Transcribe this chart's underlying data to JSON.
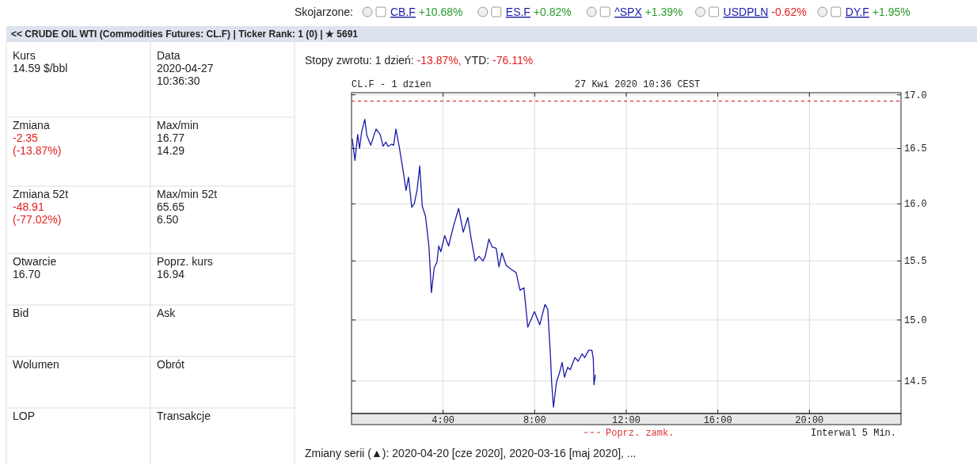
{
  "chart_data": [
    {
      "type": "other",
      "title": "Skojarzone:",
      "annotations": [
        "CB.F +10.68%",
        "ES.F +0.82%",
        "^SPX +1.39%",
        "USDPLN -0.62%",
        "DY.F +1.95%"
      ]
    },
    {
      "type": "other",
      "title": "<< CRUDE OIL WTI (Commodities Futures: CL.F) | Ticker Rank: 1 (0) | ★ 5691",
      "annotations": [
        "Kurs\n14.59 $/bbl",
        "Data\n2020-04-27\n10:36:30",
        "Zmiana\n-2.35\n(-13.87%)",
        "Max/min\n16.77\n14.29",
        "Zmiana 52t\n-48.91\n(-77.02%)",
        "Max/min 52t\n65.65\n6.50",
        "Otwarcie\n16.70",
        "Poprz. kurs\n16.94",
        "Bid",
        "Ask",
        "Wolumen",
        "Obrót",
        "LOP",
        "Transakcje"
      ]
    },
    {
      "type": "line",
      "title": "Stopy zwrotu: 1 dzień: -13.87%, YTD: -76.11%",
      "subtitle": "CL.F - 1 dzien",
      "annotations": [
        "27 Kwi 2020 10:36 CEST",
        "Interwal 5 Min.",
        "Zmiany serii (▲): 2020-04-20 [cze 2020], 2020-03-16 [maj 2020], ..."
      ],
      "log": true,
      "grid": true,
      "legend": "bottom",
      "line_style": "solid",
      "marker": "none",
      "xlim": [
        0,
        24
      ],
      "xticks": [
        {
          "value": 4,
          "label": "4:00"
        },
        {
          "value": 8,
          "label": "8:00"
        },
        {
          "value": 12,
          "label": "12:00"
        },
        {
          "value": 16,
          "label": "16:00"
        },
        {
          "value": 20,
          "label": "20:00"
        }
      ],
      "ylim": [
        14.24,
        17.02
      ],
      "yticks": [
        {
          "value": 14.5,
          "label": "14.5"
        },
        {
          "value": 15,
          "label": "15.0"
        },
        {
          "value": 15.5,
          "label": "15.5"
        },
        {
          "value": 16,
          "label": "16.0"
        },
        {
          "value": 16.5,
          "label": "16.5"
        },
        {
          "value": 17,
          "label": "17.0"
        }
      ],
      "ref_lines": [
        {
          "axis": "y",
          "value": 16.94,
          "label": "Poprz. zamk.",
          "color": "#e03030",
          "line_style": "dashed"
        }
      ],
      "series": [
        {
          "color": "#1a1aaa",
          "x": [
            0.03,
            0.15,
            0.27,
            0.35,
            0.44,
            0.58,
            0.67,
            0.84,
            1.07,
            1.25,
            1.38,
            1.5,
            1.59,
            1.76,
            1.84,
            1.94,
            2.08,
            2.26,
            2.38,
            2.49,
            2.63,
            2.74,
            2.86,
            2.98,
            3.09,
            3.23,
            3.38,
            3.49,
            3.61,
            3.73,
            3.81,
            3.9,
            4.07,
            4.24,
            4.45,
            4.68,
            4.88,
            5.08,
            5.22,
            5.4,
            5.57,
            5.74,
            5.84,
            6.0,
            6.15,
            6.32,
            6.44,
            6.57,
            6.76,
            6.96,
            7.19,
            7.36,
            7.53,
            7.7,
            7.99,
            8.22,
            8.45,
            8.57,
            8.69,
            8.74,
            8.82,
            8.95,
            9.09,
            9.2,
            9.3,
            9.44,
            9.55,
            9.76,
            9.9,
            10.07,
            10.18,
            10.36,
            10.5,
            10.56,
            10.59,
            10.65
          ],
          "values": [
            16.59,
            16.39,
            16.63,
            16.5,
            16.65,
            16.77,
            16.62,
            16.53,
            16.68,
            16.63,
            16.52,
            16.56,
            16.52,
            16.54,
            16.53,
            16.68,
            16.52,
            16.29,
            16.12,
            16.24,
            15.97,
            16.0,
            16.12,
            16.34,
            15.98,
            15.89,
            15.63,
            15.23,
            15.44,
            15.49,
            15.63,
            15.58,
            15.72,
            15.63,
            15.8,
            15.96,
            15.75,
            15.88,
            15.7,
            15.5,
            15.54,
            15.5,
            15.54,
            15.69,
            15.62,
            15.61,
            15.45,
            15.57,
            15.46,
            15.43,
            15.4,
            15.25,
            15.27,
            14.94,
            15.07,
            14.96,
            15.13,
            15.09,
            14.7,
            14.49,
            14.29,
            14.49,
            14.57,
            14.65,
            14.53,
            14.61,
            14.59,
            14.69,
            14.66,
            14.72,
            14.69,
            14.75,
            14.75,
            14.68,
            14.47,
            14.55
          ]
        }
      ]
    }
  ]
}
